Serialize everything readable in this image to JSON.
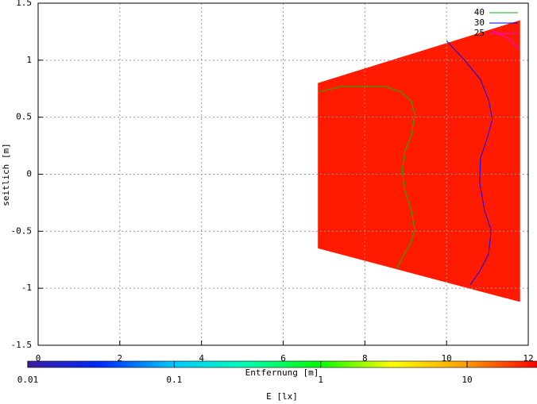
{
  "chart_data": {
    "type": "contour",
    "xlabel": "Entfernung [m]",
    "ylabel": "seitlich [m]",
    "cblabel": "E [lx]",
    "xlim": [
      0,
      12
    ],
    "xticks": [
      0,
      2,
      4,
      6,
      8,
      10,
      12
    ],
    "ylim": [
      -1.5,
      1.5
    ],
    "yticks": [
      -1.5,
      -1,
      -0.5,
      0,
      0.5,
      1,
      1.5
    ],
    "grid": true,
    "legend": "upper right",
    "region": {
      "color": "#ff1a00",
      "x": [
        6.85,
        11.8,
        11.8,
        6.85
      ],
      "y": [
        0.8,
        1.35,
        -1.12,
        -0.65
      ]
    },
    "series": [
      {
        "name": "40",
        "color": "#00c000",
        "x": [
          6.87,
          7.43,
          8.01,
          8.5,
          8.89,
          9.14,
          9.22,
          9.14,
          8.98,
          8.91,
          8.98,
          9.14,
          9.22,
          9.14,
          8.98,
          8.79
        ],
        "values": [
          0.72,
          0.77,
          0.77,
          0.77,
          0.72,
          0.64,
          0.52,
          0.34,
          0.2,
          0.03,
          -0.14,
          -0.32,
          -0.49,
          -0.59,
          -0.69,
          -0.82
        ]
      },
      {
        "name": "30",
        "color": "#0000ff",
        "x": [
          10.0,
          10.44,
          10.83,
          11.03,
          11.12,
          10.99,
          10.83,
          10.81,
          10.93,
          11.09,
          11.03,
          10.83,
          10.58
        ],
        "values": [
          1.17,
          1.0,
          0.83,
          0.65,
          0.48,
          0.31,
          0.14,
          -0.07,
          -0.32,
          -0.49,
          -0.7,
          -0.84,
          -0.97
        ]
      },
      {
        "name": "25",
        "color": "#ff00ff",
        "x": [
          11.12,
          11.51,
          11.77
        ],
        "values": [
          1.26,
          1.19,
          1.1
        ]
      }
    ],
    "cblim": [
      0.01,
      30
    ],
    "cbticks": [
      0.01,
      0.1,
      1,
      10
    ],
    "cblog": true,
    "colormap": [
      "#3c1ea0",
      "#0028ff",
      "#00c8ff",
      "#00ffb4",
      "#00ff00",
      "#ffff00",
      "#ffa000",
      "#ff0000"
    ]
  }
}
